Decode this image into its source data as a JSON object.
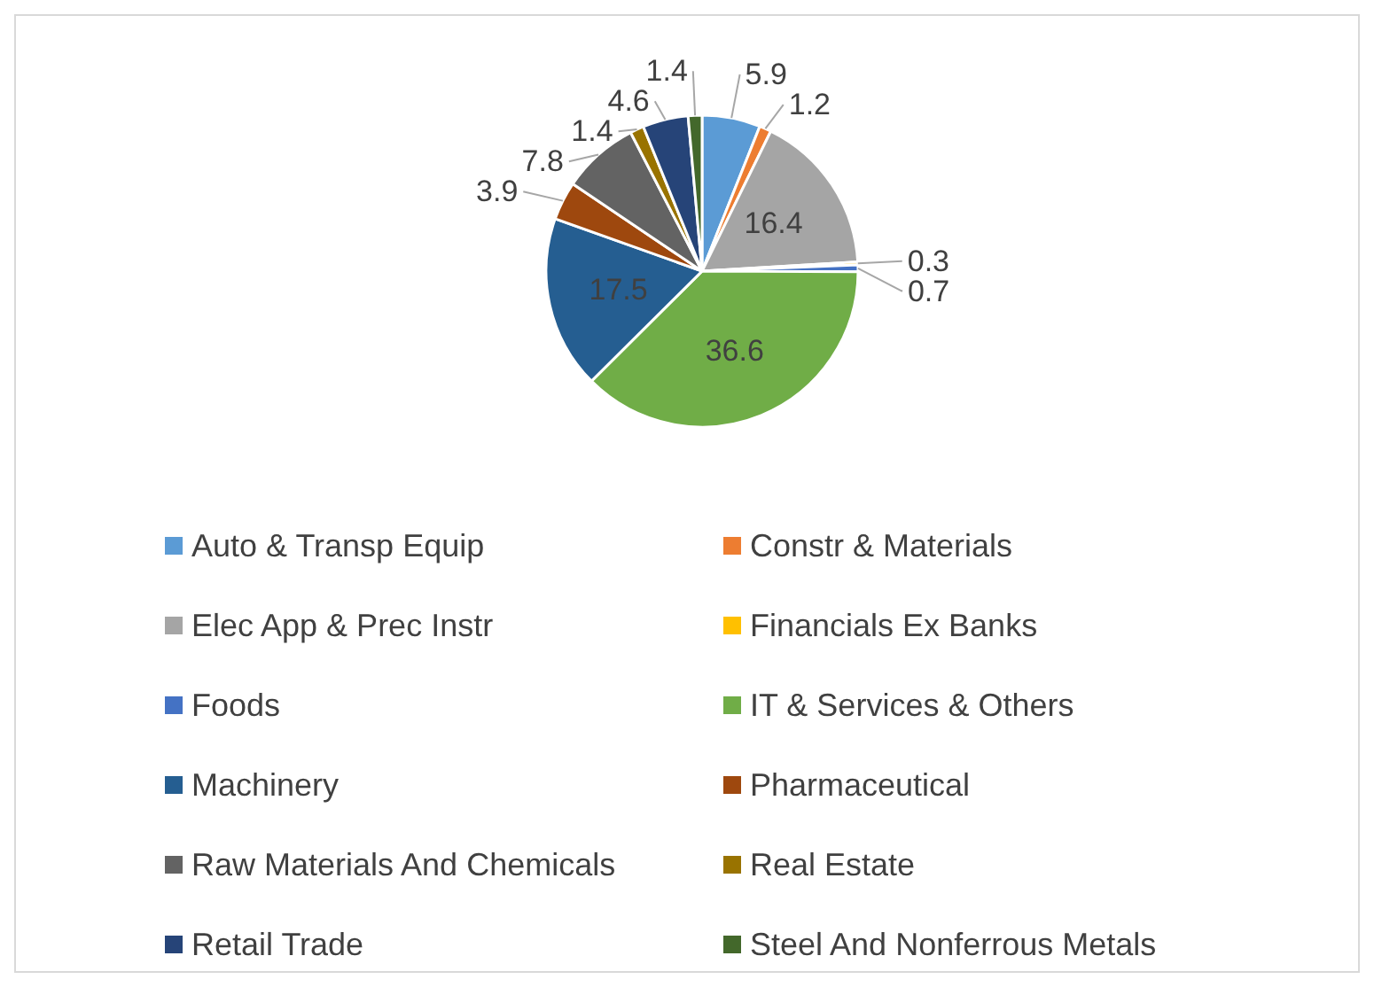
{
  "chart_data": {
    "type": "pie",
    "categories": [
      "Auto & Transp Equip",
      "Constr & Materials",
      "Elec App & Prec Instr",
      "Financials Ex Banks",
      "Foods",
      "IT & Services & Others",
      "Machinery",
      "Pharmaceutical",
      "Raw Materials And Chemicals",
      "Real Estate",
      "Retail Trade",
      "Steel And Nonferrous Metals"
    ],
    "values": [
      5.9,
      1.2,
      16.4,
      0.3,
      0.7,
      36.6,
      17.5,
      3.9,
      7.8,
      1.4,
      4.6,
      1.4
    ],
    "colors": [
      "#5b9bd5",
      "#ed7d31",
      "#a5a5a5",
      "#ffc000",
      "#4472c4",
      "#70ad47",
      "#255e91",
      "#9e480e",
      "#636363",
      "#997300",
      "#264478",
      "#43682b"
    ],
    "data_labels": true,
    "legend": "bottom"
  }
}
